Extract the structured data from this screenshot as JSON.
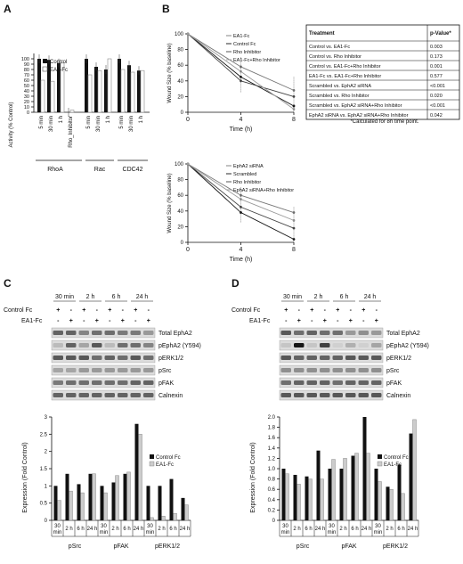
{
  "panels": {
    "a": "A",
    "b": "B",
    "c": "C",
    "d": "D"
  },
  "panel_a": {
    "chart_data": {
      "type": "bar",
      "ylabel": "Activity (% Control)",
      "yticks": [
        "0",
        "10",
        "20",
        "30",
        "40",
        "50",
        "60",
        "70",
        "80",
        "90",
        "100"
      ],
      "ylim": [
        0,
        110
      ],
      "legend": [
        "Control",
        "EA1-Fc"
      ],
      "categories": [
        "5 min",
        "30 min",
        "1 h",
        "Rho_Inhibitor",
        "5 min",
        "30 min",
        "1 h",
        "5 min",
        "30 min",
        "1 h"
      ],
      "groups": [
        "RhoA",
        "Rac",
        "CDC42"
      ],
      "series": [
        {
          "name": "Control",
          "values": [
            100,
            98,
            92,
            0,
            100,
            85,
            80,
            100,
            88,
            78
          ]
        },
        {
          "name": "EA1-Fc",
          "values": [
            60,
            58,
            92,
            4,
            70,
            78,
            100,
            80,
            75,
            78
          ]
        }
      ]
    }
  },
  "panel_b_top": {
    "chart_data": {
      "type": "line",
      "xlabel": "Time (h)",
      "ylabel": "Wound Size (% baseline)",
      "x": [
        0,
        4,
        8
      ],
      "ylim": [
        0,
        100
      ],
      "xticks": [
        "0",
        "4",
        "8"
      ],
      "yticks": [
        "0",
        "20",
        "40",
        "60",
        "80",
        "100"
      ],
      "series": [
        {
          "name": "EA1-Fc",
          "values": [
            100,
            58,
            28
          ]
        },
        {
          "name": "Control Fc",
          "values": [
            100,
            45,
            8
          ]
        },
        {
          "name": "Rho Inhibitor",
          "values": [
            100,
            40,
            20
          ]
        },
        {
          "name": "EA1-Fc+Rho Inhibitor",
          "values": [
            100,
            52,
            4
          ]
        }
      ]
    }
  },
  "panel_b_bottom": {
    "chart_data": {
      "type": "line",
      "xlabel": "Time (h)",
      "ylabel": "Wound Size (% baseline)",
      "x": [
        0,
        4,
        8
      ],
      "ylim": [
        0,
        100
      ],
      "xticks": [
        "0",
        "4",
        "8"
      ],
      "yticks": [
        "0",
        "20",
        "40",
        "60",
        "80",
        "100"
      ],
      "series": [
        {
          "name": "EphA2 siRNA",
          "values": [
            100,
            60,
            38
          ]
        },
        {
          "name": "Scrambled",
          "values": [
            100,
            38,
            4
          ]
        },
        {
          "name": "Rho Inhibitor",
          "values": [
            100,
            45,
            18
          ]
        },
        {
          "name": "EphA2 siRNA+Rho Inhibitor",
          "values": [
            100,
            55,
            28
          ]
        }
      ]
    }
  },
  "table": {
    "headers": [
      "Treatment",
      "p-Value*"
    ],
    "rows": [
      [
        "Control vs. EA1-Fc",
        "0.003"
      ],
      [
        "Control vs. Rho Inhibitor",
        "0.173"
      ],
      [
        "Control vs. EA1-Fc+Rho Inhibitor",
        "0.001"
      ],
      [
        "EA1-Fc vs. EA1-Fc+Rho Inhibitor",
        "0.577"
      ],
      [
        "Scrambled vs. EphA2 siRNA",
        "<0.001"
      ],
      [
        "Scrambled vs. Rho Inhibitor",
        "0.020"
      ],
      [
        "Scrambled vs. EphA2 siRNA+Rho Inhibitor",
        "<0.001"
      ],
      [
        "EphA2 siRNA vs. EphA2 siRNA+Rho Inhibitor",
        "0.042"
      ]
    ],
    "footnote": "*Calculated for 8h time point."
  },
  "blot": {
    "times": [
      "30 min",
      "2 h",
      "6 h",
      "24 h"
    ],
    "row_labels": [
      "Control Fc",
      "EA1-Fc"
    ],
    "signs_control": [
      "+",
      "-",
      "+",
      "-",
      "+",
      "-",
      "+",
      "-"
    ],
    "signs_ea1": [
      "-",
      "+",
      "-",
      "+",
      "-",
      "+",
      "-",
      "+"
    ],
    "bands": [
      "Total EphA2",
      "pEphA2 (Y594)",
      "pERK1/2",
      "pSrc",
      "pFAK",
      "Calnexin"
    ]
  },
  "panel_c_chart": {
    "chart_data": {
      "type": "bar",
      "ylabel": "Expression (Fold Control)",
      "ylim": [
        0,
        3
      ],
      "yticks": [
        "0",
        "0.5",
        "1",
        "1.5",
        "2",
        "2.5",
        "3"
      ],
      "legend": [
        "Control Fc",
        "EA1-Fc"
      ],
      "categories": [
        "30 min",
        "2 h",
        "6 h",
        "24 h",
        "30 min",
        "2 h",
        "6 h",
        "24 h",
        "30 min",
        "2 h",
        "6 h",
        "24 h"
      ],
      "cat_labels": [
        "30\nmin",
        "2 h",
        "6 h",
        "24 h",
        "30\nmin",
        "2 h",
        "6 h",
        "24 h",
        "30\nmin",
        "2 h",
        "6 h",
        "24 h"
      ],
      "groups": [
        "pSrc",
        "pFAK",
        "pERK1/2"
      ],
      "series": [
        {
          "name": "Control Fc",
          "values": [
            1.0,
            1.35,
            1.05,
            1.35,
            1.0,
            1.1,
            1.35,
            2.8,
            1.0,
            1.0,
            1.2,
            0.65
          ]
        },
        {
          "name": "EA1-Fc",
          "values": [
            0.58,
            0.85,
            0.8,
            1.35,
            0.8,
            1.3,
            1.4,
            2.5,
            0.08,
            0.12,
            0.2,
            0.45
          ]
        }
      ]
    }
  },
  "panel_d_chart": {
    "chart_data": {
      "type": "bar",
      "ylabel": "Expression (Fold Control)",
      "ylim": [
        0,
        2
      ],
      "yticks": [
        "0",
        "0.2",
        "0.4",
        "0.6",
        "0.8",
        "1.0",
        "1.2",
        "1.4",
        "1.6",
        "1.8",
        "2.0"
      ],
      "legend": [
        "Control Fc",
        "EA1-Fc"
      ],
      "categories": [
        "30 min",
        "2 h",
        "6 h",
        "24 h",
        "30 min",
        "2 h",
        "6 h",
        "24 h",
        "30 min",
        "2 h",
        "6 h",
        "24 h"
      ],
      "groups": [
        "pSrc",
        "pFAK",
        "pERK1/2"
      ],
      "series": [
        {
          "name": "Control Fc",
          "values": [
            1.0,
            0.88,
            0.85,
            1.35,
            1.0,
            1.0,
            1.25,
            2.0,
            1.0,
            0.65,
            1.08,
            1.68
          ]
        },
        {
          "name": "EA1-Fc",
          "values": [
            0.9,
            0.7,
            0.8,
            0.8,
            1.18,
            1.2,
            1.3,
            1.3,
            0.75,
            0.6,
            0.52,
            1.95
          ]
        }
      ]
    }
  }
}
